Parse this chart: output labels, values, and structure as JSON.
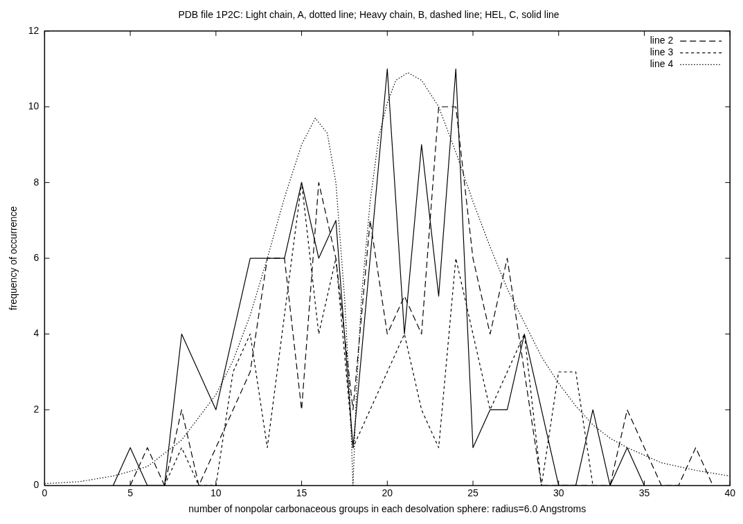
{
  "chart_data": {
    "type": "line",
    "title": "PDB file 1P2C: Light chain, A, dotted line; Heavy chain, B, dashed line; HEL, C, solid line",
    "xlabel": "number of nonpolar carbonaceous groups in each desolvation sphere: radius=6.0 Angstroms",
    "ylabel": "frequency of occurrence",
    "xlim": [
      0,
      40
    ],
    "xticks": [
      0,
      5,
      10,
      15,
      20,
      25,
      30,
      35,
      40
    ],
    "ylim": [
      0,
      12
    ],
    "yticks": [
      0,
      2,
      4,
      6,
      8,
      10,
      12
    ],
    "grid": false,
    "legend": "top right",
    "marker": "none",
    "series": [
      {
        "color": "#000000",
        "line_style": "solid",
        "x": [
          4,
          5,
          6,
          7,
          8,
          10,
          12,
          13,
          14,
          15,
          16,
          17,
          18,
          20,
          21,
          22,
          23,
          24,
          25,
          26,
          27,
          28,
          30,
          31,
          32,
          33,
          34,
          35
        ],
        "values": [
          0,
          1,
          0,
          0,
          4,
          2,
          6,
          6,
          6,
          8,
          6,
          7,
          1,
          11,
          4,
          9,
          5,
          11,
          1,
          2,
          2,
          4,
          0,
          0,
          2,
          0,
          1,
          0
        ]
      },
      {
        "name": "line 2",
        "color": "#000000",
        "line_style": "dashed",
        "x": [
          5,
          6,
          7,
          8,
          9,
          12,
          13,
          14,
          15,
          16,
          17,
          18,
          19,
          20,
          21,
          22,
          23,
          24,
          25,
          26,
          27,
          29,
          30,
          31,
          32,
          33,
          34,
          35,
          36,
          37,
          38,
          39
        ],
        "values": [
          0,
          1,
          0,
          2,
          0,
          3,
          6,
          6,
          2,
          8,
          6,
          2,
          7,
          4,
          5,
          4,
          10,
          10,
          6,
          4,
          6,
          0,
          0,
          0,
          0,
          0,
          2,
          1,
          0,
          0,
          1,
          0
        ]
      },
      {
        "name": "line 3",
        "color": "#000000",
        "line_style": "dashed",
        "x": [
          7,
          8,
          9,
          10,
          11,
          12,
          13,
          15,
          16,
          17,
          18,
          21,
          22,
          23,
          24,
          25,
          26,
          27,
          28,
          29,
          30,
          31,
          32
        ],
        "values": [
          0,
          1,
          0,
          0,
          3,
          4,
          1,
          8,
          4,
          6,
          1,
          4,
          2,
          1,
          6,
          4,
          2,
          3,
          4,
          0,
          3,
          3,
          0
        ]
      },
      {
        "name": "line 4",
        "color": "#000000",
        "line_style": "dotted",
        "x": [
          0,
          2,
          4,
          6,
          8,
          10,
          11,
          12,
          13,
          14,
          15,
          15.8,
          16.5,
          17,
          17.5,
          17.8,
          18,
          18.2,
          18.5,
          19,
          19.5,
          20,
          20.5,
          21.2,
          22,
          23,
          24,
          25,
          26,
          27,
          28,
          29,
          30,
          31,
          32,
          33,
          34,
          35,
          36,
          38,
          40
        ],
        "values": [
          0.05,
          0.1,
          0.25,
          0.5,
          1.2,
          2.4,
          3.3,
          4.5,
          6,
          7.6,
          9,
          9.7,
          9.3,
          8,
          5,
          2.5,
          0,
          2.5,
          5,
          7.5,
          9.2,
          10.1,
          10.7,
          10.9,
          10.7,
          10,
          8.8,
          7.5,
          6.3,
          5.2,
          4.3,
          3.4,
          2.7,
          2.1,
          1.6,
          1.25,
          1,
          0.8,
          0.6,
          0.4,
          0.25
        ]
      }
    ]
  }
}
